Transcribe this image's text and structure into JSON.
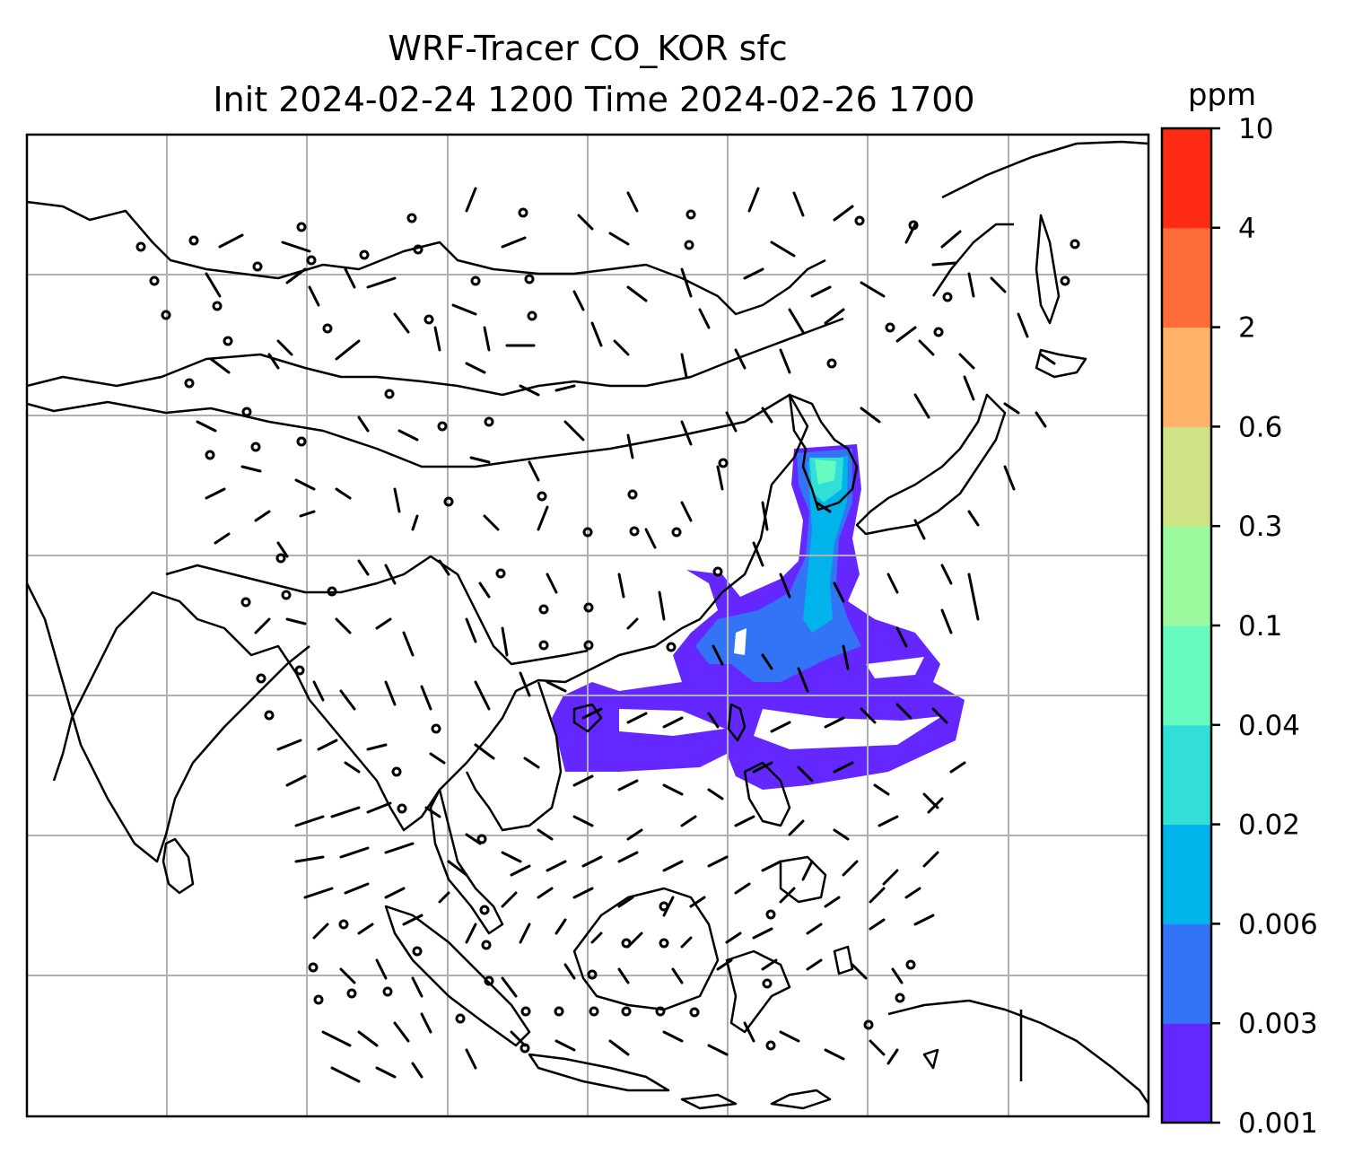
{
  "map": {
    "title_line1": "WRF-Tracer CO_KOR sfc",
    "title_line2": "Init 2024-02-24 1200 Time 2024-02-26 1700",
    "variable": "CO_KOR",
    "level": "sfc",
    "init_time": "2024-02-24 1200",
    "valid_time": "2024-02-26 1700",
    "coastline_color": "#000000",
    "gridline_color": "#b0b0b0",
    "overlay": "wind-barbs"
  },
  "colorbar": {
    "unit": "ppm",
    "levels": [
      "0.001",
      "0.003",
      "0.006",
      "0.02",
      "0.04",
      "0.1",
      "0.3",
      "0.6",
      "2",
      "4",
      "10"
    ],
    "colors": [
      "#6427ff",
      "#3274f5",
      "#00b3ea",
      "#32dfd6",
      "#68fbc1",
      "#9bfa9e",
      "#cde386",
      "#feb26a",
      "#ff6d3b",
      "#ff2b14"
    ]
  }
}
